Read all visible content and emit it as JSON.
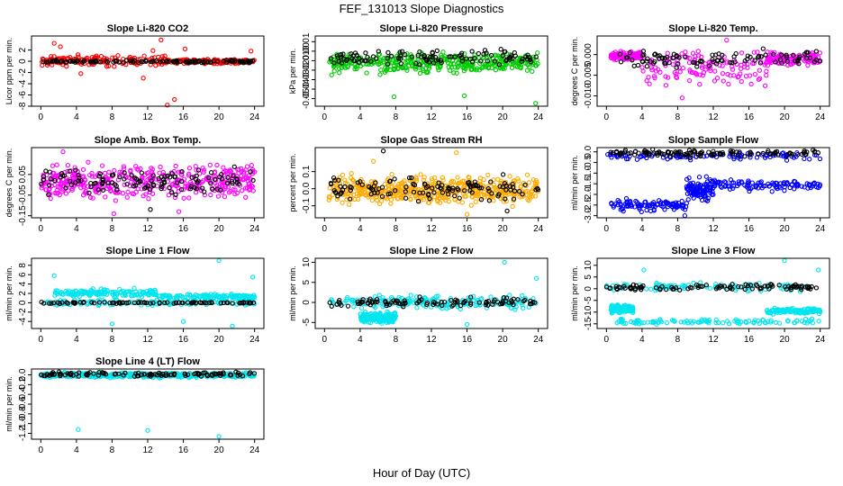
{
  "figure": {
    "title": "FEF_131013  Slope Diagnostics",
    "xlabel": "Hour of Day (UTC)"
  },
  "chart_data": [
    {
      "type": "scatter",
      "title": "Slope Li-820 CO2",
      "ylabel": "Licor ppm per min.",
      "xlim": [
        0,
        24
      ],
      "ylim": [
        -8,
        4.5
      ],
      "xticks": [
        0,
        4,
        8,
        12,
        16,
        20,
        24
      ],
      "yticks": [
        -8,
        -6,
        -4,
        -2,
        0,
        2
      ],
      "ytick_labels": [
        "-8",
        "-6",
        "-4",
        "-2",
        "0",
        "2"
      ],
      "series": [
        {
          "color": "#ff0000",
          "bands": [
            {
              "x": [
                0,
                14
              ],
              "y": [
                -1.2,
                1.4
              ]
            },
            {
              "x": [
                14,
                24
              ],
              "y": [
                -0.6,
                0.5
              ]
            }
          ],
          "n": 300,
          "outliers": [
            [
              1.5,
              3.2
            ],
            [
              2.2,
              2.6
            ],
            [
              13.5,
              3.8
            ],
            [
              14.2,
              -7.8
            ],
            [
              15.0,
              -6.8
            ],
            [
              16.2,
              2.2
            ],
            [
              23.6,
              1.8
            ],
            [
              11.5,
              -3.0
            ],
            [
              4.5,
              -2.2
            ],
            [
              12.6,
              1.9
            ]
          ]
        },
        {
          "color": "#000000",
          "bands": [
            {
              "x": [
                0,
                24
              ],
              "y": [
                -0.35,
                0.3
              ]
            }
          ],
          "n": 120,
          "outliers": []
        }
      ]
    },
    {
      "type": "scatter",
      "title": "Slope Li-820 Pressure",
      "ylabel": "kPa per min.",
      "xlim": [
        0,
        24
      ],
      "ylim": [
        -0.058,
        0.016
      ],
      "xticks": [
        0,
        4,
        8,
        12,
        16,
        20,
        24
      ],
      "yticks": [
        -0.05,
        -0.04,
        -0.03,
        -0.02,
        -0.01,
        0.0,
        0.01
      ],
      "ytick_labels": [
        "-0.05",
        "-0.04",
        "-0.03",
        "-0.02",
        "-0.01",
        "0.00",
        "0.01"
      ],
      "series": [
        {
          "color": "#00cc00",
          "bands": [
            {
              "x": [
                0.5,
                24
              ],
              "y": [
                -0.028,
                0.003
              ]
            }
          ],
          "n": 380,
          "outliers": [
            [
              7.8,
              -0.048
            ],
            [
              15.7,
              -0.047
            ],
            [
              23.7,
              -0.055
            ]
          ]
        },
        {
          "color": "#000000",
          "bands": [
            {
              "x": [
                0.5,
                24
              ],
              "y": [
                -0.018,
                0.005
              ]
            }
          ],
          "n": 110,
          "outliers": []
        }
      ]
    },
    {
      "type": "scatter",
      "title": "Slope Li-820 Temp.",
      "ylabel": "degrees C per min.",
      "xlim": [
        0,
        24
      ],
      "ylim": [
        -0.0125,
        0.0045
      ],
      "xticks": [
        0,
        4,
        8,
        12,
        16,
        20,
        24
      ],
      "yticks": [
        -0.01,
        -0.005,
        0.0
      ],
      "ytick_labels": [
        "-0.010",
        "-0.005",
        "0.000"
      ],
      "series": [
        {
          "color": "#ff00ff",
          "bands": [
            {
              "x": [
                0.5,
                4
              ],
              "y": [
                -0.0015,
                0.001
              ]
            },
            {
              "x": [
                4,
                18
              ],
              "y": [
                -0.009,
                0.003
              ]
            },
            {
              "x": [
                18,
                24
              ],
              "y": [
                -0.003,
                0.001
              ]
            }
          ],
          "n": 380,
          "outliers": [
            [
              8.5,
              -0.0105
            ],
            [
              13.5,
              0.0035
            ]
          ]
        },
        {
          "color": "#000000",
          "bands": [
            {
              "x": [
                0.5,
                24
              ],
              "y": [
                -0.004,
                0.002
              ]
            }
          ],
          "n": 100,
          "outliers": []
        }
      ]
    },
    {
      "type": "scatter",
      "title": "Slope Amb. Box Temp.",
      "ylabel": "degrees C per min.",
      "xlim": [
        0,
        24
      ],
      "ylim": [
        -0.16,
        0.18
      ],
      "xticks": [
        0,
        4,
        8,
        12,
        16,
        20,
        24
      ],
      "yticks": [
        -0.15,
        -0.05,
        0.05
      ],
      "ytick_labels": [
        "-0.15",
        "-0.05",
        "0.05"
      ],
      "series": [
        {
          "color": "#ff00ff",
          "bands": [
            {
              "x": [
                0,
                24
              ],
              "y": [
                -0.1,
                0.13
              ]
            }
          ],
          "n": 420,
          "outliers": [
            [
              2.5,
              0.16
            ],
            [
              8.2,
              -0.14
            ],
            [
              15.5,
              -0.13
            ]
          ]
        },
        {
          "color": "#000000",
          "bands": [
            {
              "x": [
                0,
                24
              ],
              "y": [
                -0.07,
                0.11
              ]
            }
          ],
          "n": 120,
          "outliers": [
            [
              12.3,
              -0.12
            ]
          ]
        }
      ]
    },
    {
      "type": "scatter",
      "title": "Slope Gas Stream RH",
      "ylabel": "percent per min.",
      "xlim": [
        0,
        24
      ],
      "ylim": [
        -0.17,
        0.24
      ],
      "xticks": [
        0,
        4,
        8,
        12,
        16,
        20,
        24
      ],
      "yticks": [
        -0.1,
        0.0,
        0.1
      ],
      "ytick_labels": [
        "-0.1",
        "0.0",
        "0.1"
      ],
      "series": [
        {
          "color": "#ffaa00",
          "bands": [
            {
              "x": [
                0.5,
                24
              ],
              "y": [
                -0.12,
                0.1
              ]
            }
          ],
          "n": 480,
          "outliers": [
            [
              14.8,
              0.21
            ],
            [
              16.0,
              -0.15
            ],
            [
              5.5,
              0.16
            ]
          ]
        },
        {
          "color": "#000000",
          "bands": [
            {
              "x": [
                0.5,
                24
              ],
              "y": [
                -0.1,
                0.1
              ]
            }
          ],
          "n": 120,
          "outliers": [
            [
              6.6,
              0.22
            ],
            [
              20.5,
              -0.13
            ]
          ]
        }
      ]
    },
    {
      "type": "scatter",
      "title": "Slope Sample Flow",
      "ylabel": "ml/min per min.",
      "xlim": [
        0,
        24
      ],
      "ylim": [
        -3.1,
        0.2
      ],
      "xticks": [
        0,
        4,
        8,
        12,
        16,
        20,
        24
      ],
      "yticks": [
        -3.0,
        -2.5,
        -2.0,
        -1.5,
        -1.0,
        -0.5,
        0.0
      ],
      "ytick_labels": [
        "-3.0",
        "-2.5",
        "-2.0",
        "-1.5",
        "-1.0",
        "-0.5",
        "0.0"
      ],
      "series": [
        {
          "color": "#0000ff",
          "bands": [
            {
              "x": [
                0,
                24
              ],
              "y": [
                -0.45,
                0.05
              ]
            },
            {
              "x": [
                0.5,
                9
              ],
              "y": [
                -2.9,
                -2.1
              ]
            },
            {
              "x": [
                9,
                12
              ],
              "y": [
                -2.5,
                -1.0
              ]
            },
            {
              "x": [
                12,
                24
              ],
              "y": [
                -1.9,
                -1.2
              ]
            }
          ],
          "n": 420,
          "outliers": [
            [
              8.8,
              -3.0
            ]
          ]
        },
        {
          "color": "#000000",
          "bands": [
            {
              "x": [
                0,
                24
              ],
              "y": [
                -0.3,
                0.15
              ]
            }
          ],
          "n": 110,
          "outliers": []
        }
      ]
    },
    {
      "type": "scatter",
      "title": "Slope Line 1 Flow",
      "ylabel": "ml/min per min.",
      "xlim": [
        0,
        24
      ],
      "ylim": [
        -5.5,
        9.5
      ],
      "xticks": [
        0,
        4,
        8,
        12,
        16,
        20,
        24
      ],
      "yticks": [
        -4,
        -2,
        0,
        2,
        4,
        6,
        8
      ],
      "ytick_labels": [
        "-4",
        "-2",
        "0",
        "2",
        "4",
        "6",
        "8"
      ],
      "series": [
        {
          "color": "#00e5ee",
          "bands": [
            {
              "x": [
                0.5,
                24
              ],
              "y": [
                -0.8,
                0.8
              ]
            },
            {
              "x": [
                1,
                13
              ],
              "y": [
                1.0,
                3.2
              ]
            },
            {
              "x": [
                13,
                24
              ],
              "y": [
                0.6,
                2.0
              ]
            }
          ],
          "n": 420,
          "outliers": [
            [
              1.5,
              5.8
            ],
            [
              20.0,
              9.0
            ],
            [
              8.0,
              -4.5
            ],
            [
              16.0,
              -4.0
            ],
            [
              21.5,
              -5.0
            ],
            [
              23.8,
              5.5
            ]
          ]
        },
        {
          "color": "#000000",
          "bands": [
            {
              "x": [
                0,
                24
              ],
              "y": [
                -0.2,
                0.2
              ]
            }
          ],
          "n": 90,
          "outliers": []
        }
      ]
    },
    {
      "type": "scatter",
      "title": "Slope Line 2 Flow",
      "ylabel": "ml/min per min.",
      "xlim": [
        0,
        24
      ],
      "ylim": [
        -6.5,
        11
      ],
      "xticks": [
        0,
        4,
        8,
        12,
        16,
        20,
        24
      ],
      "yticks": [
        -5,
        0,
        5,
        10
      ],
      "ytick_labels": [
        "-5",
        "0",
        "5",
        "10"
      ],
      "series": [
        {
          "color": "#00e5ee",
          "bands": [
            {
              "x": [
                0.5,
                24
              ],
              "y": [
                -2.5,
                2.5
              ]
            },
            {
              "x": [
                4,
                8
              ],
              "y": [
                -5.5,
                -2.0
              ]
            }
          ],
          "n": 400,
          "outliers": [
            [
              20.2,
              10.0
            ],
            [
              23.8,
              6.0
            ],
            [
              16.0,
              -5.5
            ]
          ]
        },
        {
          "color": "#000000",
          "bands": [
            {
              "x": [
                0.5,
                24
              ],
              "y": [
                -1.5,
                1.5
              ]
            }
          ],
          "n": 100,
          "outliers": []
        }
      ]
    },
    {
      "type": "scatter",
      "title": "Slope Line 3 Flow",
      "ylabel": "ml/min per min.",
      "xlim": [
        0,
        24
      ],
      "ylim": [
        -17,
        13
      ],
      "xticks": [
        0,
        4,
        8,
        12,
        16,
        20,
        24
      ],
      "yticks": [
        -15,
        -10,
        -5,
        0,
        5,
        10
      ],
      "ytick_labels": [
        "-15",
        "-10",
        "-5",
        "0",
        "5",
        "10"
      ],
      "series": [
        {
          "color": "#00e5ee",
          "bands": [
            {
              "x": [
                0,
                24
              ],
              "y": [
                -1.5,
                3.0
              ]
            },
            {
              "x": [
                0.5,
                24
              ],
              "y": [
                -15.5,
                -12.5
              ]
            },
            {
              "x": [
                0.5,
                3
              ],
              "y": [
                -11,
                -6
              ]
            },
            {
              "x": [
                18,
                24
              ],
              "y": [
                -11,
                -8
              ]
            }
          ],
          "n": 420,
          "outliers": [
            [
              4.2,
              8.0
            ],
            [
              20.0,
              12.0
            ],
            [
              23.8,
              8.0
            ]
          ]
        },
        {
          "color": "#000000",
          "bands": [
            {
              "x": [
                0,
                24
              ],
              "y": [
                -1.0,
                2.5
              ]
            }
          ],
          "n": 100,
          "outliers": []
        }
      ]
    },
    {
      "type": "scatter",
      "title": "Slope Line 4 (LT) Flow",
      "ylabel": "ml/min per min.",
      "xlim": [
        0,
        24
      ],
      "ylim": [
        -1.32,
        0.12
      ],
      "xticks": [
        0,
        4,
        8,
        12,
        16,
        20,
        24
      ],
      "yticks": [
        -1.2,
        -1.0,
        -0.8,
        -0.6,
        -0.4,
        -0.2,
        0.0
      ],
      "ytick_labels": [
        "-1.2",
        "-1.0",
        "-0.8",
        "-0.6",
        "-0.4",
        "-0.2",
        "0.0"
      ],
      "series": [
        {
          "color": "#00e5ee",
          "bands": [
            {
              "x": [
                0,
                24
              ],
              "y": [
                -0.07,
                0.06
              ]
            }
          ],
          "n": 420,
          "outliers": [
            [
              4.2,
              -1.12
            ],
            [
              12.0,
              -1.14
            ],
            [
              20.0,
              -1.26
            ]
          ]
        },
        {
          "color": "#000000",
          "bands": [
            {
              "x": [
                0,
                24
              ],
              "y": [
                -0.05,
                0.08
              ]
            }
          ],
          "n": 110,
          "outliers": []
        }
      ]
    }
  ]
}
